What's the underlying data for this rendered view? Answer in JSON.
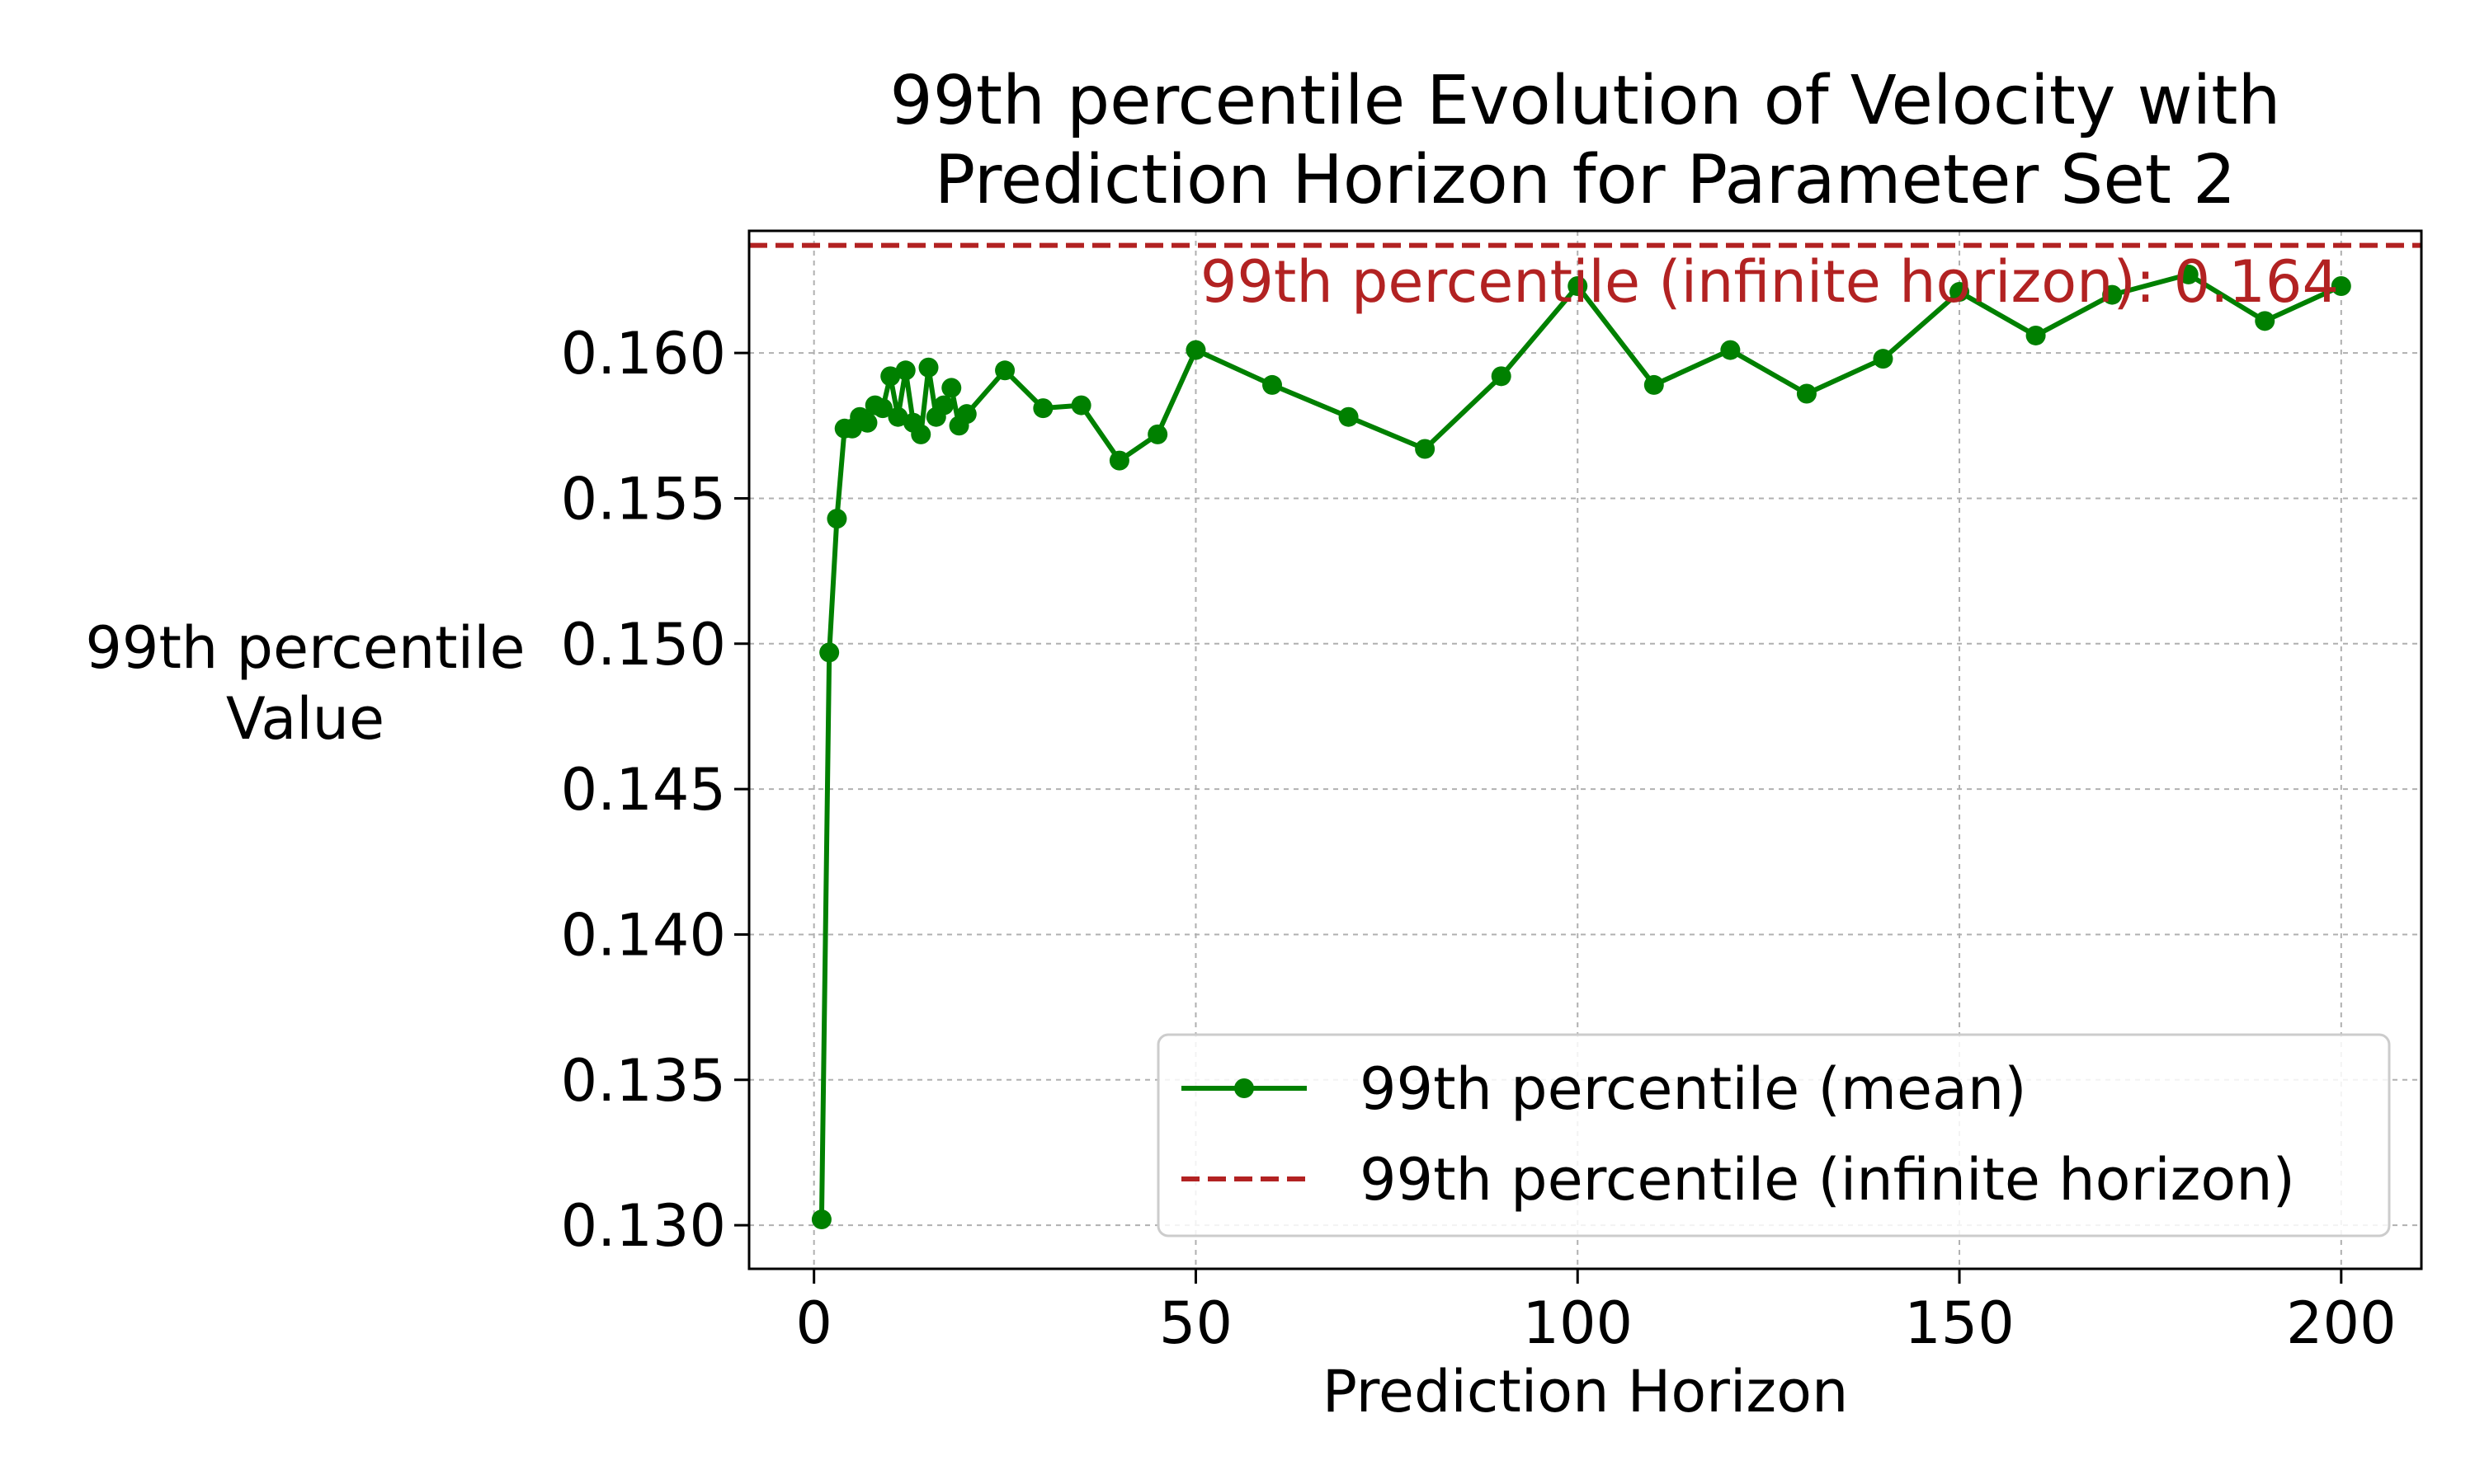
{
  "chart_data": {
    "type": "line",
    "title": "99th percentile Evolution of Velocity with\nPrediction Horizon for Parameter Set 2",
    "xlabel": "Prediction Horizon",
    "ylabel": "99th percentile\nValue",
    "xlim": [
      -8.5,
      210.5
    ],
    "ylim": [
      0.1285,
      0.1642
    ],
    "xticks": [
      0,
      50,
      100,
      150,
      200
    ],
    "xtick_labels": [
      "0",
      "50",
      "100",
      "150",
      "200"
    ],
    "yticks": [
      0.13,
      0.135,
      0.14,
      0.145,
      0.15,
      0.155,
      0.16
    ],
    "ytick_labels": [
      "0.130",
      "0.135",
      "0.140",
      "0.145",
      "0.150",
      "0.155",
      "0.160"
    ],
    "grid": true,
    "legend_position": "lower-right",
    "series": [
      {
        "name": "99th percentile (mean)",
        "color": "#008000",
        "style": "solid-with-markers",
        "x": [
          1,
          2,
          3,
          4,
          5,
          6,
          7,
          8,
          9,
          10,
          11,
          12,
          13,
          14,
          15,
          16,
          17,
          18,
          19,
          20,
          25,
          30,
          35,
          40,
          45,
          50,
          60,
          70,
          80,
          90,
          100,
          110,
          120,
          130,
          140,
          150,
          160,
          170,
          180,
          190,
          200
        ],
        "y": [
          0.1302,
          0.1497,
          0.1543,
          0.1574,
          0.1574,
          0.1578,
          0.1576,
          0.1582,
          0.1581,
          0.1592,
          0.1578,
          0.1594,
          0.1576,
          0.1572,
          0.1595,
          0.1578,
          0.1582,
          0.1588,
          0.1575,
          0.1579,
          0.1594,
          0.1581,
          0.1582,
          0.1563,
          0.1572,
          0.1601,
          0.1589,
          0.1578,
          0.1567,
          0.1592,
          0.1623,
          0.1589,
          0.1601,
          0.1586,
          0.1598,
          0.1621,
          0.1606,
          0.162,
          0.1627,
          0.1611,
          0.1623
        ]
      },
      {
        "name": "99th percentile (infinite horizon)",
        "color": "#b22222",
        "style": "dashed",
        "y_constant": 0.1637
      }
    ],
    "annotation": {
      "text": "99th percentile (infinite horizon): 0.164",
      "color": "#b22222"
    }
  }
}
